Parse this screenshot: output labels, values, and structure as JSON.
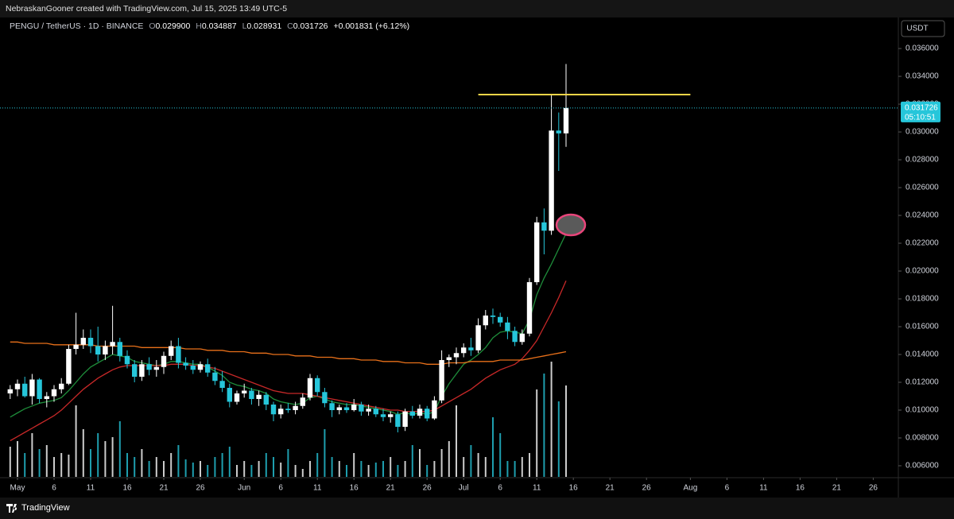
{
  "header": {
    "credit": "NebraskanGooner created with TradingView.com, Jul 15, 2025 13:49 UTC-5"
  },
  "footer": {
    "brand": "TradingView"
  },
  "currency_button": "USDT",
  "chart_data": {
    "type": "candlestick",
    "legend": {
      "symbol": "PENGU / TetherUS · 1D · BINANCE",
      "o_key": "O",
      "o": "0.029900",
      "h_key": "H",
      "h": "0.034887",
      "l_key": "L",
      "l": "0.028931",
      "c_key": "C",
      "c": "0.031726",
      "change": "+0.001831 (+6.12%)"
    },
    "x": [
      "2025-04-30",
      "2025-05-01",
      "2025-05-02",
      "2025-05-03",
      "2025-05-04",
      "2025-05-05",
      "2025-05-06",
      "2025-05-07",
      "2025-05-08",
      "2025-05-09",
      "2025-05-10",
      "2025-05-11",
      "2025-05-12",
      "2025-05-13",
      "2025-05-14",
      "2025-05-15",
      "2025-05-16",
      "2025-05-17",
      "2025-05-18",
      "2025-05-19",
      "2025-05-20",
      "2025-05-21",
      "2025-05-22",
      "2025-05-23",
      "2025-05-24",
      "2025-05-25",
      "2025-05-26",
      "2025-05-27",
      "2025-05-28",
      "2025-05-29",
      "2025-05-30",
      "2025-05-31",
      "2025-06-01",
      "2025-06-02",
      "2025-06-03",
      "2025-06-04",
      "2025-06-05",
      "2025-06-06",
      "2025-06-07",
      "2025-06-08",
      "2025-06-09",
      "2025-06-10",
      "2025-06-11",
      "2025-06-12",
      "2025-06-13",
      "2025-06-14",
      "2025-06-15",
      "2025-06-16",
      "2025-06-17",
      "2025-06-18",
      "2025-06-19",
      "2025-06-20",
      "2025-06-21",
      "2025-06-22",
      "2025-06-23",
      "2025-06-24",
      "2025-06-25",
      "2025-06-26",
      "2025-06-27",
      "2025-06-28",
      "2025-06-29",
      "2025-06-30",
      "2025-07-01",
      "2025-07-02",
      "2025-07-03",
      "2025-07-04",
      "2025-07-05",
      "2025-07-06",
      "2025-07-07",
      "2025-07-08",
      "2025-07-09",
      "2025-07-10",
      "2025-07-11",
      "2025-07-12",
      "2025-07-13",
      "2025-07-14",
      "2025-07-15"
    ],
    "open": [
      0.0112,
      0.0115,
      0.0119,
      0.011,
      0.0122,
      0.0108,
      0.011,
      0.0115,
      0.0119,
      0.0144,
      0.0147,
      0.0152,
      0.0146,
      0.014,
      0.0146,
      0.0149,
      0.0139,
      0.0133,
      0.0124,
      0.0133,
      0.0129,
      0.0131,
      0.0139,
      0.0146,
      0.0134,
      0.0132,
      0.0129,
      0.0133,
      0.0127,
      0.0121,
      0.0116,
      0.0106,
      0.0112,
      0.0114,
      0.0108,
      0.0111,
      0.0104,
      0.0097,
      0.0101,
      0.01,
      0.0103,
      0.0109,
      0.0123,
      0.0113,
      0.0105,
      0.01,
      0.0102,
      0.01,
      0.0104,
      0.0099,
      0.0101,
      0.0097,
      0.0095,
      0.0097,
      0.0088,
      0.0099,
      0.0096,
      0.0101,
      0.0094,
      0.0107,
      0.0136,
      0.0138,
      0.0141,
      0.0145,
      0.0143,
      0.0161,
      0.0168,
      0.0167,
      0.0163,
      0.0157,
      0.0149,
      0.0155,
      0.0192,
      0.0235,
      0.0229,
      0.0301,
      0.0299
    ],
    "high": [
      0.0118,
      0.0122,
      0.0124,
      0.0126,
      0.0123,
      0.0113,
      0.0118,
      0.0123,
      0.0147,
      0.017,
      0.0158,
      0.0158,
      0.016,
      0.015,
      0.0175,
      0.0152,
      0.0143,
      0.0136,
      0.0136,
      0.0138,
      0.0136,
      0.0142,
      0.015,
      0.0152,
      0.0138,
      0.0136,
      0.0135,
      0.0137,
      0.0131,
      0.0128,
      0.0119,
      0.0114,
      0.0119,
      0.0116,
      0.0114,
      0.0113,
      0.0106,
      0.0104,
      0.0105,
      0.0106,
      0.0112,
      0.0126,
      0.0125,
      0.0116,
      0.0107,
      0.0104,
      0.0105,
      0.0108,
      0.0106,
      0.0104,
      0.0103,
      0.0101,
      0.0099,
      0.0099,
      0.0101,
      0.0103,
      0.0104,
      0.0103,
      0.011,
      0.0143,
      0.014,
      0.0145,
      0.0148,
      0.0152,
      0.0166,
      0.0172,
      0.0173,
      0.017,
      0.0167,
      0.016,
      0.0158,
      0.0195,
      0.0239,
      0.0245,
      0.0327,
      0.0314,
      0.034887
    ],
    "low": [
      0.0108,
      0.011,
      0.0109,
      0.0104,
      0.0105,
      0.0102,
      0.0106,
      0.0112,
      0.0118,
      0.014,
      0.0144,
      0.0141,
      0.0135,
      0.0136,
      0.014,
      0.0135,
      0.013,
      0.012,
      0.0121,
      0.0125,
      0.0124,
      0.0126,
      0.0136,
      0.013,
      0.0129,
      0.0126,
      0.0127,
      0.0124,
      0.0118,
      0.0113,
      0.0102,
      0.0104,
      0.0109,
      0.0104,
      0.0103,
      0.01,
      0.0092,
      0.0094,
      0.0098,
      0.0097,
      0.0101,
      0.0107,
      0.011,
      0.0102,
      0.0095,
      0.0097,
      0.0098,
      0.0099,
      0.0096,
      0.0096,
      0.0095,
      0.0092,
      0.0091,
      0.0084,
      0.0085,
      0.0094,
      0.0094,
      0.0092,
      0.0093,
      0.0105,
      0.0131,
      0.0133,
      0.0138,
      0.0139,
      0.0141,
      0.0158,
      0.0162,
      0.016,
      0.0151,
      0.0146,
      0.0147,
      0.0153,
      0.019,
      0.0212,
      0.0226,
      0.0272,
      0.028931
    ],
    "close": [
      0.0115,
      0.0119,
      0.011,
      0.0122,
      0.0108,
      0.011,
      0.0115,
      0.0119,
      0.0144,
      0.0147,
      0.0152,
      0.0146,
      0.014,
      0.0146,
      0.0149,
      0.0139,
      0.0133,
      0.0124,
      0.0133,
      0.0129,
      0.0131,
      0.0139,
      0.0146,
      0.0134,
      0.0132,
      0.0129,
      0.0133,
      0.0127,
      0.0121,
      0.0116,
      0.0106,
      0.0112,
      0.0114,
      0.0108,
      0.0111,
      0.0104,
      0.0097,
      0.0101,
      0.01,
      0.0103,
      0.0109,
      0.0123,
      0.0113,
      0.0105,
      0.01,
      0.0102,
      0.01,
      0.0104,
      0.0099,
      0.0101,
      0.0097,
      0.0095,
      0.0097,
      0.0088,
      0.0099,
      0.0096,
      0.0101,
      0.0094,
      0.0107,
      0.0136,
      0.0138,
      0.0141,
      0.0145,
      0.0143,
      0.0161,
      0.0168,
      0.0167,
      0.0163,
      0.0157,
      0.0149,
      0.0155,
      0.0192,
      0.0235,
      0.0229,
      0.0301,
      0.0299,
      0.031726
    ],
    "volume": [
      38,
      45,
      30,
      55,
      35,
      40,
      25,
      30,
      28,
      90,
      60,
      35,
      55,
      45,
      50,
      70,
      30,
      25,
      35,
      20,
      25,
      20,
      30,
      40,
      22,
      18,
      20,
      15,
      25,
      30,
      38,
      15,
      20,
      15,
      20,
      30,
      25,
      18,
      35,
      15,
      10,
      20,
      30,
      60,
      25,
      20,
      15,
      30,
      20,
      15,
      18,
      20,
      25,
      15,
      20,
      40,
      35,
      15,
      20,
      35,
      45,
      90,
      25,
      40,
      30,
      25,
      75,
      55,
      20,
      20,
      25,
      30,
      110,
      130,
      145,
      95,
      115
    ],
    "up_color": "#ffffff",
    "down_color": "#26c6da",
    "series": [
      {
        "color": "#1e8c3a",
        "values": [
          0.0095,
          0.0098,
          0.0101,
          0.0103,
          0.0105,
          0.0106,
          0.0107,
          0.0109,
          0.0114,
          0.012,
          0.0126,
          0.0131,
          0.0134,
          0.0137,
          0.014,
          0.0139,
          0.0138,
          0.0135,
          0.0134,
          0.0133,
          0.0132,
          0.0133,
          0.0135,
          0.0135,
          0.0134,
          0.0133,
          0.0133,
          0.0131,
          0.0128,
          0.0125,
          0.012,
          0.0118,
          0.0117,
          0.0115,
          0.0114,
          0.0112,
          0.0108,
          0.0106,
          0.0105,
          0.0104,
          0.0105,
          0.0109,
          0.011,
          0.0108,
          0.0106,
          0.0105,
          0.0104,
          0.0104,
          0.0103,
          0.0102,
          0.0101,
          0.01,
          0.0099,
          0.0097,
          0.0098,
          0.0097,
          0.0098,
          0.0097,
          0.0099,
          0.011,
          0.0119,
          0.0126,
          0.0133,
          0.0136,
          0.014,
          0.0145,
          0.0152,
          0.0156,
          0.0157,
          0.0156,
          0.0155,
          0.0165,
          0.0183,
          0.0195,
          0.0205,
          0.0216,
          0.0227
        ]
      },
      {
        "color": "#c62828",
        "values": [
          0.0078,
          0.0081,
          0.0084,
          0.0087,
          0.009,
          0.0093,
          0.0096,
          0.01,
          0.0105,
          0.011,
          0.0115,
          0.0119,
          0.0123,
          0.0126,
          0.0129,
          0.0131,
          0.0132,
          0.0132,
          0.0132,
          0.0132,
          0.0132,
          0.0132,
          0.0133,
          0.0133,
          0.0133,
          0.0132,
          0.0132,
          0.0131,
          0.013,
          0.0128,
          0.0126,
          0.0124,
          0.0122,
          0.012,
          0.0118,
          0.0116,
          0.0114,
          0.0113,
          0.0112,
          0.0112,
          0.0112,
          0.0111,
          0.011,
          0.0109,
          0.0108,
          0.0107,
          0.0106,
          0.0105,
          0.0104,
          0.0103,
          0.0102,
          0.0101,
          0.01,
          0.01,
          0.0099,
          0.0099,
          0.0099,
          0.0099,
          0.01,
          0.0103,
          0.0106,
          0.0109,
          0.0112,
          0.0115,
          0.0119,
          0.0123,
          0.0126,
          0.0129,
          0.0131,
          0.0133,
          0.0137,
          0.0143,
          0.015,
          0.016,
          0.017,
          0.0181,
          0.0193
        ]
      },
      {
        "color": "#e8701a",
        "values": [
          0.0149,
          0.0149,
          0.0148,
          0.0148,
          0.0148,
          0.0148,
          0.0147,
          0.0147,
          0.0147,
          0.0147,
          0.0147,
          0.0147,
          0.0146,
          0.0146,
          0.0146,
          0.0146,
          0.0146,
          0.0146,
          0.0145,
          0.0145,
          0.0145,
          0.0145,
          0.0145,
          0.0145,
          0.0144,
          0.0144,
          0.0144,
          0.0143,
          0.0143,
          0.0143,
          0.0142,
          0.0142,
          0.0142,
          0.0141,
          0.0141,
          0.0141,
          0.014,
          0.014,
          0.014,
          0.0139,
          0.0139,
          0.0139,
          0.0138,
          0.0138,
          0.0138,
          0.0137,
          0.0137,
          0.0137,
          0.0136,
          0.0136,
          0.0136,
          0.0135,
          0.0135,
          0.0135,
          0.0134,
          0.0134,
          0.0134,
          0.0133,
          0.0133,
          0.0133,
          0.0134,
          0.0134,
          0.0134,
          0.0135,
          0.0135,
          0.0135,
          0.0135,
          0.0136,
          0.0136,
          0.0136,
          0.0136,
          0.0137,
          0.0138,
          0.0139,
          0.014,
          0.0141,
          0.0142
        ]
      }
    ],
    "horizontal_line": {
      "value": 0.03269,
      "color": "#f5d547",
      "from": "2025-07-03",
      "to": "2025-08-01"
    },
    "last_price": {
      "value": 0.031726,
      "label": "0.031726",
      "countdown": "05:10:51"
    },
    "ylim": [
      0.0052,
      0.03806
    ],
    "yticks": [
      {
        "value": 0.006,
        "label": "0.006000"
      },
      {
        "value": 0.008,
        "label": "0.008000"
      },
      {
        "value": 0.01,
        "label": "0.010000"
      },
      {
        "value": 0.012,
        "label": "0.012000"
      },
      {
        "value": 0.014,
        "label": "0.014000"
      },
      {
        "value": 0.016,
        "label": "0.016000"
      },
      {
        "value": 0.018,
        "label": "0.018000"
      },
      {
        "value": 0.02,
        "label": "0.020000"
      },
      {
        "value": 0.022,
        "label": "0.022000"
      },
      {
        "value": 0.024,
        "label": "0.024000"
      },
      {
        "value": 0.026,
        "label": "0.026000"
      },
      {
        "value": 0.028,
        "label": "0.028000"
      },
      {
        "value": 0.03,
        "label": "0.030000"
      },
      {
        "value": 0.032,
        "label": "0.032000"
      },
      {
        "value": 0.034,
        "label": "0.034000"
      },
      {
        "value": 0.036,
        "label": "0.036000"
      }
    ],
    "xticks": [
      {
        "value": "2025-05-01",
        "label": "May"
      },
      {
        "value": "2025-05-06",
        "label": "6"
      },
      {
        "value": "2025-05-11",
        "label": "11"
      },
      {
        "value": "2025-05-16",
        "label": "16"
      },
      {
        "value": "2025-05-21",
        "label": "21"
      },
      {
        "value": "2025-05-26",
        "label": "26"
      },
      {
        "value": "2025-06-01",
        "label": "Jun"
      },
      {
        "value": "2025-06-06",
        "label": "6"
      },
      {
        "value": "2025-06-11",
        "label": "11"
      },
      {
        "value": "2025-06-16",
        "label": "16"
      },
      {
        "value": "2025-06-21",
        "label": "21"
      },
      {
        "value": "2025-06-26",
        "label": "26"
      },
      {
        "value": "2025-07-01",
        "label": "Jul"
      },
      {
        "value": "2025-07-06",
        "label": "6"
      },
      {
        "value": "2025-07-11",
        "label": "11"
      },
      {
        "value": "2025-07-16",
        "label": "16"
      },
      {
        "value": "2025-07-21",
        "label": "21"
      },
      {
        "value": "2025-07-26",
        "label": "26"
      },
      {
        "value": "2025-08-01",
        "label": "Aug"
      },
      {
        "value": "2025-08-06",
        "label": "6"
      },
      {
        "value": "2025-08-11",
        "label": "11"
      },
      {
        "value": "2025-08-16",
        "label": "16"
      },
      {
        "value": "2025-08-21",
        "label": "21"
      },
      {
        "value": "2025-08-26",
        "label": "26"
      }
    ]
  }
}
